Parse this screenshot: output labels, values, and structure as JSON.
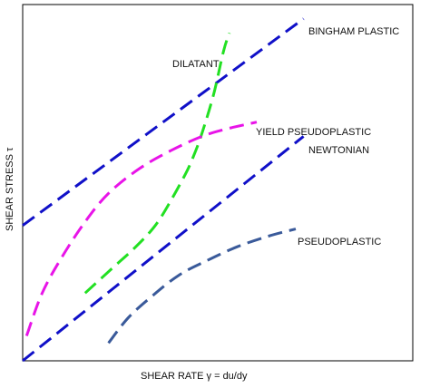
{
  "chart_data": {
    "type": "line",
    "xlabel": "SHEAR RATE γ = du/dy",
    "ylabel": "SHEAR STRESS τ",
    "xlim": [
      0,
      1
    ],
    "ylim": [
      0,
      1
    ],
    "grid": false,
    "legend": "none",
    "series": [
      {
        "name": "BINGHAM PLASTIC",
        "color": "#1010c8",
        "dash": "long",
        "x": [
          0.0,
          0.72
        ],
        "y": [
          0.38,
          0.96
        ]
      },
      {
        "name": "DILATANT",
        "color": "#22e022",
        "dash": "long",
        "x": [
          0.16,
          0.23,
          0.29,
          0.34,
          0.38,
          0.42,
          0.44,
          0.46,
          0.49,
          0.515,
          0.53
        ],
        "y": [
          0.19,
          0.26,
          0.32,
          0.38,
          0.45,
          0.53,
          0.58,
          0.64,
          0.75,
          0.87,
          0.92
        ]
      },
      {
        "name": "YIELD PSEUDOPLASTIC",
        "color": "#e814e8",
        "dash": "long",
        "x": [
          0.01,
          0.05,
          0.1,
          0.16,
          0.22,
          0.3,
          0.38,
          0.46,
          0.52,
          0.6
        ],
        "y": [
          0.07,
          0.19,
          0.29,
          0.39,
          0.47,
          0.54,
          0.59,
          0.63,
          0.65,
          0.67
        ]
      },
      {
        "name": "NEWTONIAN",
        "color": "#1010c8",
        "dash": "long",
        "x": [
          0.0,
          0.72
        ],
        "y": [
          0.0,
          0.63
        ]
      },
      {
        "name": "PSEUDOPLASTIC",
        "color": "#3a5a9a",
        "dash": "long",
        "x": [
          0.22,
          0.27,
          0.33,
          0.4,
          0.47,
          0.55,
          0.63,
          0.7
        ],
        "y": [
          0.05,
          0.12,
          0.18,
          0.24,
          0.28,
          0.32,
          0.35,
          0.37
        ]
      }
    ]
  }
}
